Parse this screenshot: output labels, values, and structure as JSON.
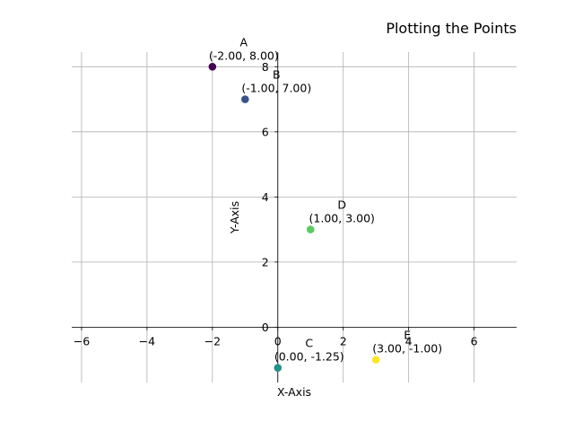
{
  "chart_data": {
    "type": "scatter",
    "title": "Plotting the Points",
    "xlabel": "X-Axis",
    "ylabel": "Y-Axis",
    "xlim": [
      -6.3,
      7.3
    ],
    "ylim": [
      -1.7,
      8.45
    ],
    "xticks": [
      -6,
      -4,
      -2,
      0,
      2,
      4,
      6
    ],
    "yticks": [
      0,
      2,
      4,
      6,
      8
    ],
    "xtick_labels": [
      "−6",
      "−4",
      "−2",
      "0",
      "2",
      "4",
      "6"
    ],
    "ytick_labels": [
      "0",
      "2",
      "4",
      "6",
      "8"
    ],
    "grid": true,
    "colors": {
      "grid": "#b0b0b0",
      "axis": "#000000"
    },
    "points": [
      {
        "name": "A",
        "x": -2.0,
        "y": 8.0,
        "coord_label": "(-2.00, 8.00)",
        "color": "#440154"
      },
      {
        "name": "B",
        "x": -1.0,
        "y": 7.0,
        "coord_label": "(-1.00, 7.00)",
        "color": "#3b528b"
      },
      {
        "name": "C",
        "x": 0.0,
        "y": -1.25,
        "coord_label": "(0.00, -1.25)",
        "color": "#21918c"
      },
      {
        "name": "D",
        "x": 1.0,
        "y": 3.0,
        "coord_label": "(1.00, 3.00)",
        "color": "#5ec962"
      },
      {
        "name": "E",
        "x": 3.0,
        "y": -1.0,
        "coord_label": "(3.00, -1.00)",
        "color": "#fde725"
      }
    ]
  }
}
